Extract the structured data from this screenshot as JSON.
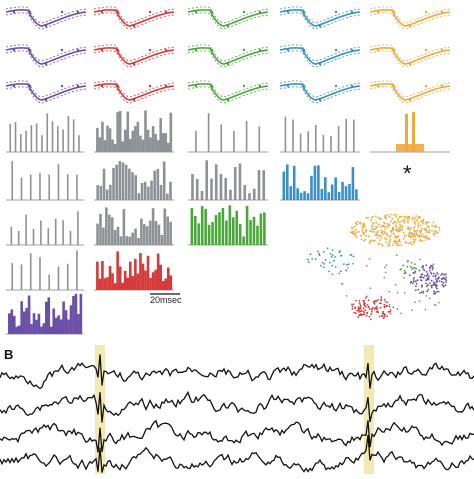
{
  "figure": {
    "panel_b_label": "B",
    "scale_label": "20msec",
    "asterisk": "*",
    "colors": {
      "purple": "#6a4fa6",
      "red": "#d63a3a",
      "green": "#4aa83a",
      "blue": "#3a8fc4",
      "orange": "#f0a93a",
      "gray": "#8e9196",
      "black": "#111111",
      "highlight": "#f3e3a0"
    },
    "units": [
      "purple",
      "red",
      "green",
      "blue",
      "orange"
    ],
    "waveform_rows": 3,
    "histogram_panels": 15,
    "eeg_traces": 4
  }
}
